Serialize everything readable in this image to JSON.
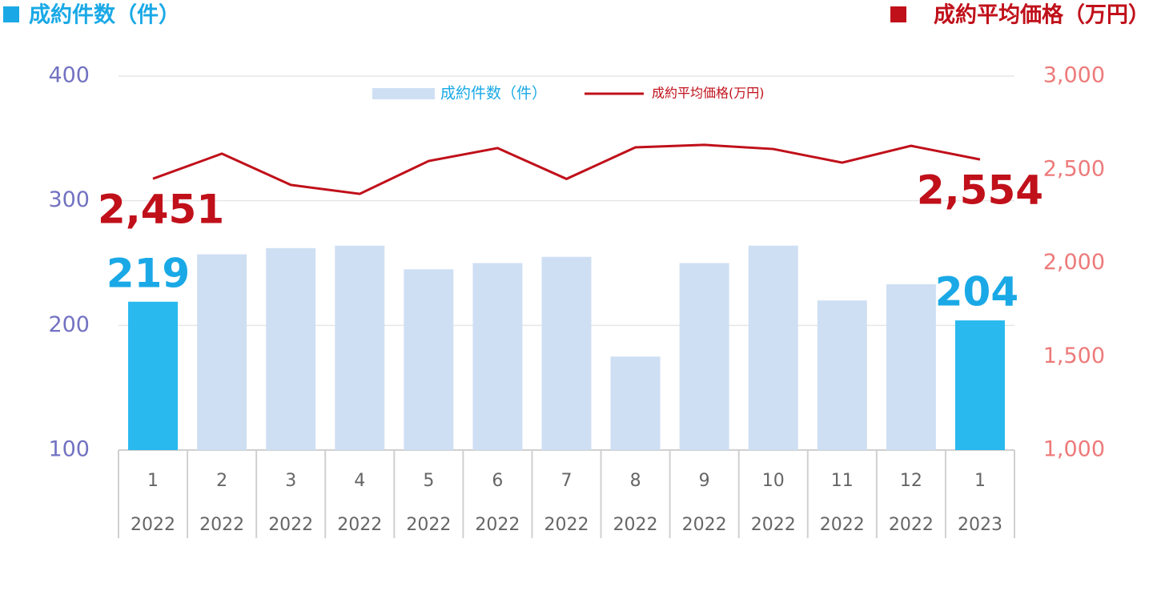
{
  "chart_data": {
    "type": "bar-line",
    "left_title": "成約件数（件）",
    "right_title": "成約平均価格（万円）",
    "categories": [
      {
        "month": "1",
        "year": "2022"
      },
      {
        "month": "2",
        "year": "2022"
      },
      {
        "month": "3",
        "year": "2022"
      },
      {
        "month": "4",
        "year": "2022"
      },
      {
        "month": "5",
        "year": "2022"
      },
      {
        "month": "6",
        "year": "2022"
      },
      {
        "month": "7",
        "year": "2022"
      },
      {
        "month": "8",
        "year": "2022"
      },
      {
        "month": "9",
        "year": "2022"
      },
      {
        "month": "10",
        "year": "2022"
      },
      {
        "month": "11",
        "year": "2022"
      },
      {
        "month": "12",
        "year": "2022"
      },
      {
        "month": "1",
        "year": "2023"
      }
    ],
    "series": [
      {
        "name": "成約件数（件）",
        "type": "bar",
        "color": "#cfdff3",
        "point_colors": [
          "#29b9ee",
          null,
          null,
          null,
          null,
          null,
          null,
          null,
          null,
          null,
          null,
          null,
          "#29b9ee"
        ],
        "label_color": "#1aa9e6",
        "values": [
          219,
          257,
          262,
          264,
          245,
          250,
          255,
          175,
          250,
          264,
          220,
          233,
          204
        ],
        "value_labels": [
          "219",
          null,
          null,
          null,
          null,
          null,
          null,
          null,
          null,
          null,
          null,
          null,
          "204"
        ]
      },
      {
        "name": "成約平均価格(万円)",
        "type": "line",
        "axis": "y2",
        "color": "#c0101a",
        "values": [
          2451,
          2585,
          2418,
          2370,
          2546,
          2615,
          2450,
          2619,
          2632,
          2610,
          2537,
          2627,
          2554
        ],
        "value_labels": [
          "2,451",
          null,
          null,
          null,
          null,
          null,
          null,
          null,
          null,
          null,
          null,
          null,
          "2,554"
        ]
      }
    ],
    "ylim": [
      100,
      400
    ],
    "yticks": [
      100,
      200,
      300,
      400
    ],
    "y2lim": [
      1000,
      3000
    ],
    "y2ticks": [
      {
        "value": 1000,
        "label": "1,000"
      },
      {
        "value": 1500,
        "label": "1,500"
      },
      {
        "value": 2000,
        "label": "2,000"
      },
      {
        "value": 2500,
        "label": "2,500"
      },
      {
        "value": 3000,
        "label": "3,000"
      }
    ],
    "grid": true
  }
}
